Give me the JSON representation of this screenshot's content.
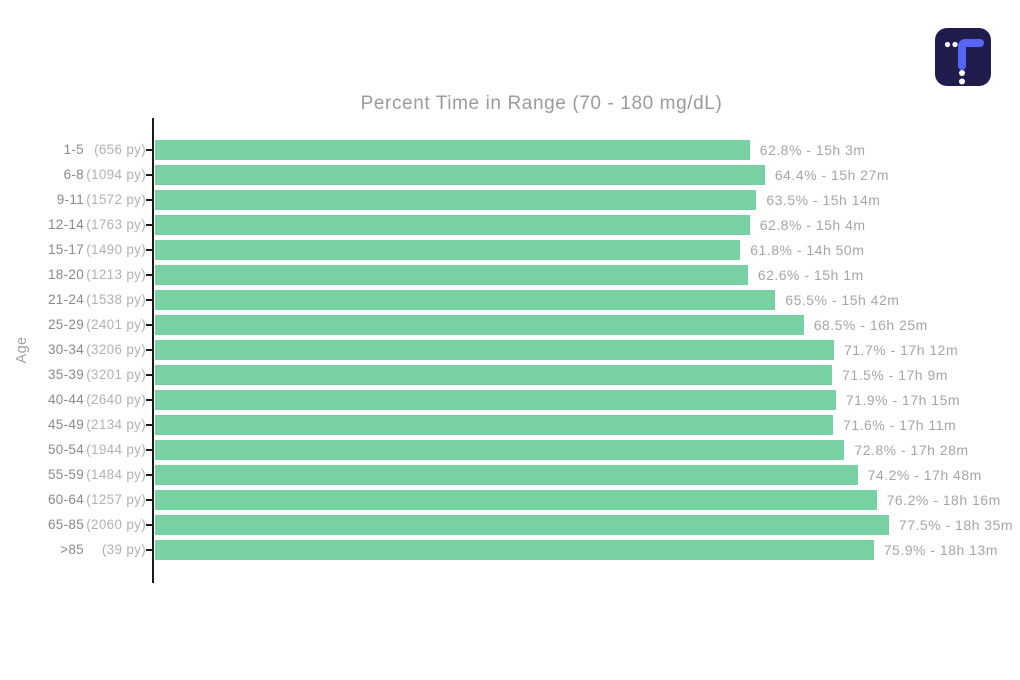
{
  "page": {
    "background_color": "#ffffff"
  },
  "logo": {
    "name": "tidepool-logo",
    "background_color": "#211c4e",
    "accent_color": "#5766f2",
    "dot_color": "#ffffff"
  },
  "chart_data": {
    "type": "bar",
    "orientation": "horizontal",
    "title": "Percent Time in Range (70 - 180 mg/dL)",
    "xlabel": "",
    "ylabel": "Age",
    "value_unit": "%",
    "xlim": [
      0,
      82
    ],
    "grid": false,
    "legend": "none",
    "bar_color": "#77d1a3",
    "axis_color": "#1c1c1c",
    "rows": [
      {
        "age": "1-5",
        "person_years": 656,
        "percent": 62.8,
        "time": "15h 3m"
      },
      {
        "age": "6-8",
        "person_years": 1094,
        "percent": 64.4,
        "time": "15h 27m"
      },
      {
        "age": "9-11",
        "person_years": 1572,
        "percent": 63.5,
        "time": "15h 14m"
      },
      {
        "age": "12-14",
        "person_years": 1763,
        "percent": 62.8,
        "time": "15h 4m"
      },
      {
        "age": "15-17",
        "person_years": 1490,
        "percent": 61.8,
        "time": "14h 50m"
      },
      {
        "age": "18-20",
        "person_years": 1213,
        "percent": 62.6,
        "time": "15h 1m"
      },
      {
        "age": "21-24",
        "person_years": 1538,
        "percent": 65.5,
        "time": "15h 42m"
      },
      {
        "age": "25-29",
        "person_years": 2401,
        "percent": 68.5,
        "time": "16h 25m"
      },
      {
        "age": "30-34",
        "person_years": 3206,
        "percent": 71.7,
        "time": "17h 12m"
      },
      {
        "age": "35-39",
        "person_years": 3201,
        "percent": 71.5,
        "time": "17h 9m"
      },
      {
        "age": "40-44",
        "person_years": 2640,
        "percent": 71.9,
        "time": "17h 15m"
      },
      {
        "age": "45-49",
        "person_years": 2134,
        "percent": 71.6,
        "time": "17h 11m"
      },
      {
        "age": "50-54",
        "person_years": 1944,
        "percent": 72.8,
        "time": "17h 28m"
      },
      {
        "age": "55-59",
        "person_years": 1484,
        "percent": 74.2,
        "time": "17h 48m"
      },
      {
        "age": "60-64",
        "person_years": 1257,
        "percent": 76.2,
        "time": "18h 16m"
      },
      {
        "age": "65-85",
        "person_years": 2060,
        "percent": 77.5,
        "time": "18h 35m"
      },
      {
        "age": ">85",
        "person_years": 39,
        "percent": 75.9,
        "time": "18h 13m"
      }
    ]
  }
}
